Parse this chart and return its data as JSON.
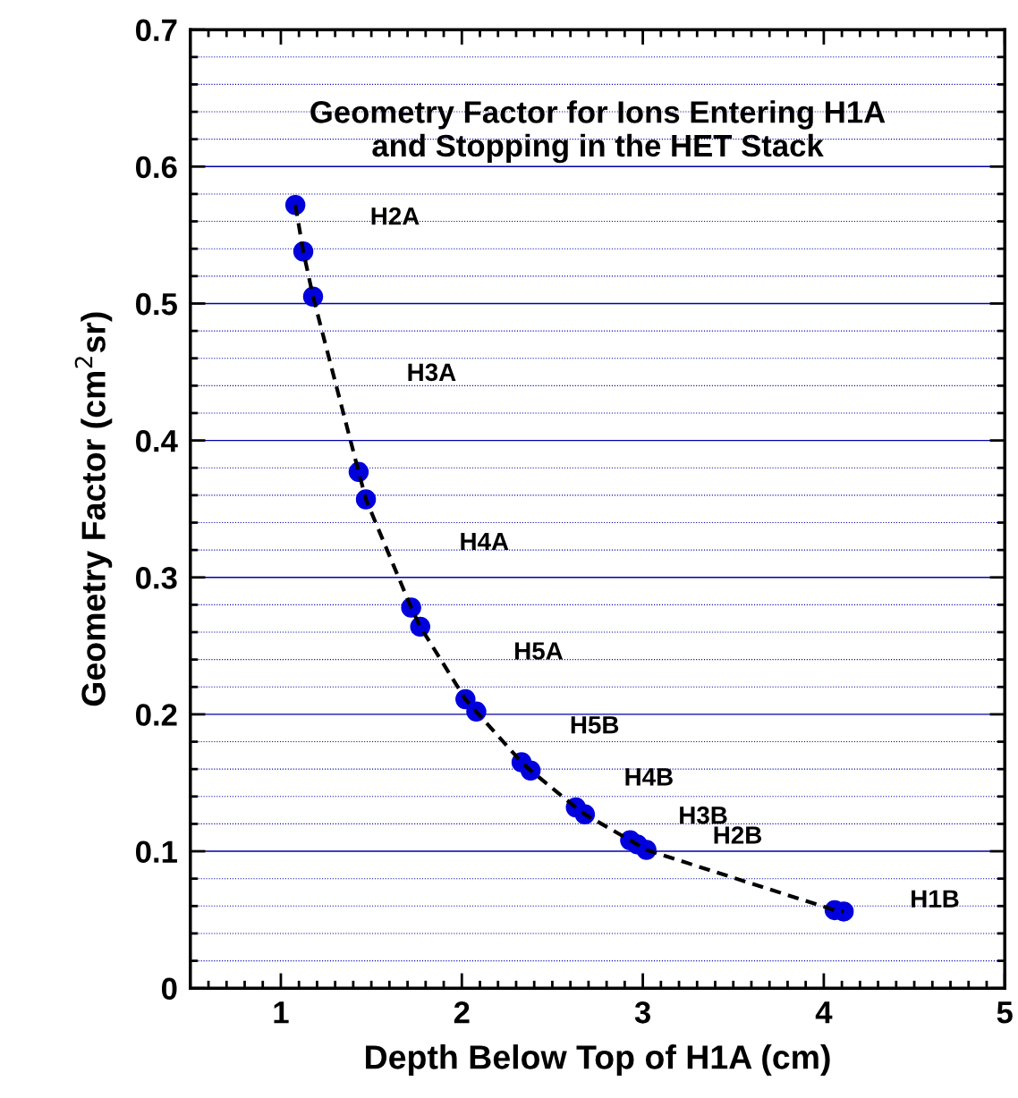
{
  "chart_data": {
    "type": "scatter",
    "title": "Geometry Factor for Ions Entering H1A\nand Stopping in the HET Stack",
    "xlabel": "Depth Below Top of H1A (cm)",
    "ylabel": "Geometry Factor (cm$^{2}$sr)",
    "x": [
      1.08,
      1.124,
      1.178,
      1.43,
      1.47,
      1.72,
      1.77,
      2.02,
      2.08,
      2.33,
      2.38,
      2.63,
      2.68,
      2.93,
      2.97,
      3.02,
      4.06,
      4.11
    ],
    "series": [
      {
        "type": "line",
        "color": "#000000",
        "line_style": "dashed",
        "marker": "none",
        "values": [
          0.572,
          0.538,
          0.505,
          0.377,
          0.357,
          0.278,
          0.264,
          0.211,
          0.202,
          0.165,
          0.159,
          0.132,
          0.127,
          0.108,
          0.105,
          0.101,
          0.057,
          0.056
        ]
      },
      {
        "color": "#0000dd",
        "marker": "circle",
        "values": [
          0.572,
          0.538,
          0.505,
          0.377,
          0.357,
          0.278,
          0.264,
          0.211,
          0.202,
          0.165,
          0.159,
          0.132,
          0.127,
          0.108,
          0.105,
          0.101,
          0.057,
          0.056
        ]
      }
    ],
    "annotations": [
      "H2A",
      "H3A",
      "H4A",
      "H5A",
      "H5B",
      "H4B",
      "H3B",
      "H2B",
      "H1B"
    ],
    "xlim": [
      0.5,
      5
    ],
    "xticks": [
      {
        "value": 0.6,
        "label": null
      },
      {
        "value": 0.7,
        "label": null
      },
      {
        "value": 0.8,
        "label": null
      },
      {
        "value": 0.9,
        "label": null
      },
      1,
      {
        "value": 1.1,
        "label": null
      },
      {
        "value": 1.2,
        "label": null
      },
      {
        "value": 1.3,
        "label": null
      },
      {
        "value": 1.4,
        "label": null
      },
      {
        "value": 1.5,
        "label": null
      },
      {
        "value": 1.6,
        "label": null
      },
      {
        "value": 1.7,
        "label": null
      },
      {
        "value": 1.8,
        "label": null
      },
      {
        "value": 1.9,
        "label": null
      },
      2,
      {
        "value": 2.1,
        "label": null
      },
      {
        "value": 2.2,
        "label": null
      },
      {
        "value": 2.3,
        "label": null
      },
      {
        "value": 2.4,
        "label": null
      },
      {
        "value": 2.5,
        "label": null
      },
      {
        "value": 2.6,
        "label": null
      },
      {
        "value": 2.7,
        "label": null
      },
      {
        "value": 2.8,
        "label": null
      },
      {
        "value": 2.9,
        "label": null
      },
      3,
      {
        "value": 3.1,
        "label": null
      },
      {
        "value": 3.2,
        "label": null
      },
      {
        "value": 3.3,
        "label": null
      },
      {
        "value": 3.4,
        "label": null
      },
      {
        "value": 3.5,
        "label": null
      },
      {
        "value": 3.6,
        "label": null
      },
      {
        "value": 3.7,
        "label": null
      },
      {
        "value": 3.8,
        "label": null
      },
      {
        "value": 3.9,
        "label": null
      },
      4,
      {
        "value": 4.1,
        "label": null
      },
      {
        "value": 4.2,
        "label": null
      },
      {
        "value": 4.3,
        "label": null
      },
      {
        "value": 4.4,
        "label": null
      },
      {
        "value": 4.5,
        "label": null
      },
      {
        "value": 4.6,
        "label": null
      },
      {
        "value": 4.7,
        "label": null
      },
      {
        "value": 4.8,
        "label": null
      },
      {
        "value": 4.9,
        "label": null
      },
      5
    ],
    "ylim": [
      0,
      0.7
    ],
    "yticks": [
      0,
      {
        "value": 0.02,
        "label": null
      },
      {
        "value": 0.04,
        "label": null
      },
      {
        "value": 0.06,
        "label": null
      },
      {
        "value": 0.08,
        "label": null
      },
      0.1,
      {
        "value": 0.12,
        "label": null
      },
      {
        "value": 0.14,
        "label": null
      },
      {
        "value": 0.16,
        "label": null
      },
      {
        "value": 0.18,
        "label": null
      },
      0.2,
      {
        "value": 0.22,
        "label": null
      },
      {
        "value": 0.24,
        "label": null
      },
      {
        "value": 0.26,
        "label": null
      },
      {
        "value": 0.28,
        "label": null
      },
      0.3,
      {
        "value": 0.32,
        "label": null
      },
      {
        "value": 0.34,
        "label": null
      },
      {
        "value": 0.36,
        "label": null
      },
      {
        "value": 0.38,
        "label": null
      },
      0.4,
      {
        "value": 0.42,
        "label": null
      },
      {
        "value": 0.44,
        "label": null
      },
      {
        "value": 0.46,
        "label": null
      },
      {
        "value": 0.48,
        "label": null
      },
      0.5,
      {
        "value": 0.52,
        "label": null
      },
      {
        "value": 0.54,
        "label": null
      },
      {
        "value": 0.56,
        "label": null
      },
      {
        "value": 0.58,
        "label": null
      },
      0.6,
      {
        "value": 0.62,
        "label": null
      },
      {
        "value": 0.64,
        "label": null
      },
      {
        "value": 0.66,
        "label": null
      },
      {
        "value": 0.68,
        "label": null
      },
      0.7
    ],
    "grid": "y",
    "legend": false
  }
}
